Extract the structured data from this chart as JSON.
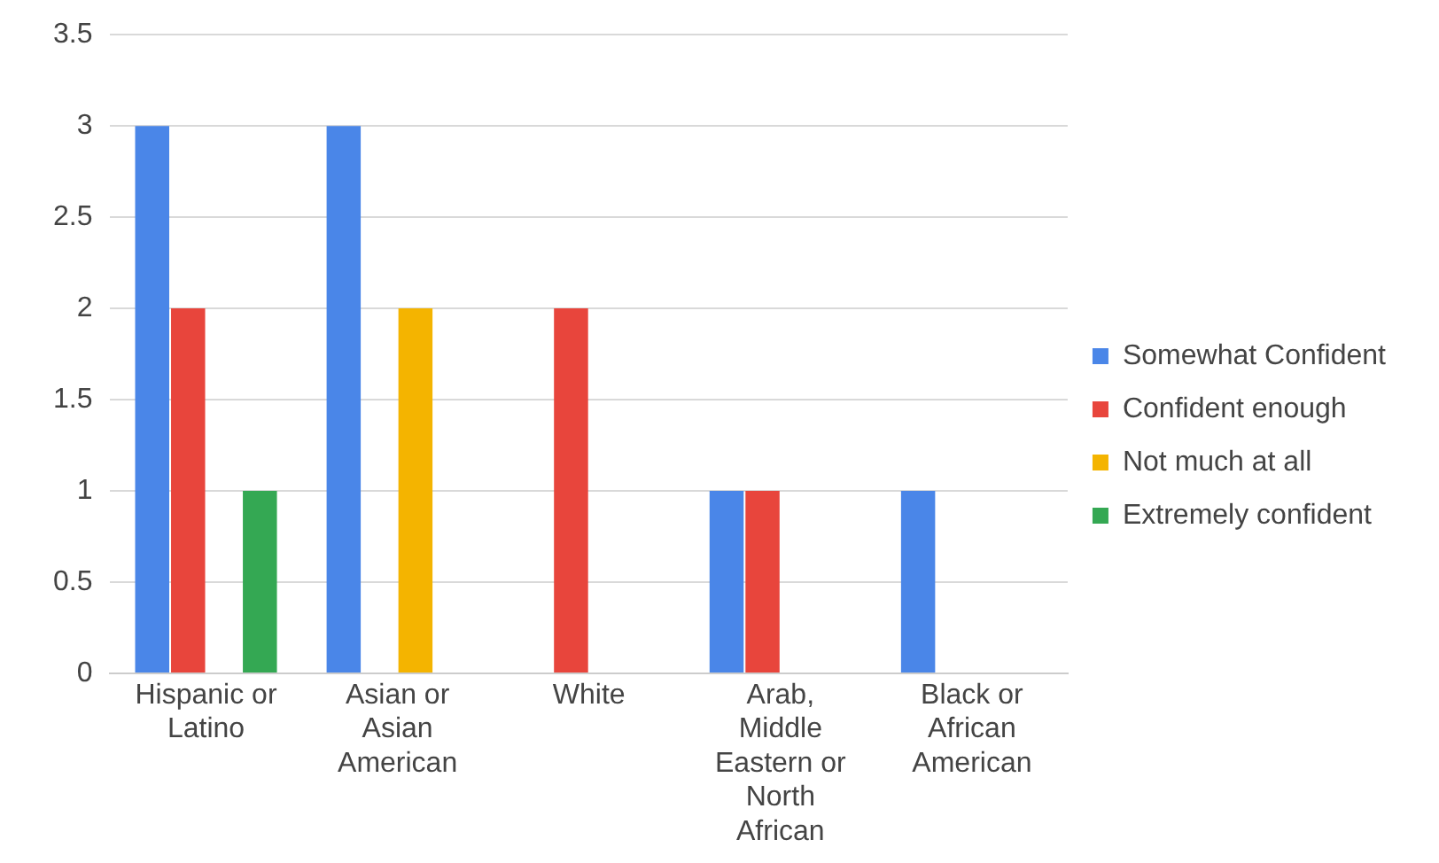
{
  "chart_data": {
    "type": "bar",
    "categories": [
      "Hispanic or Latino",
      "Asian or Asian American",
      "White",
      "Arab, Middle Eastern or North African",
      "Black or African American"
    ],
    "series": [
      {
        "name": "Somewhat Confident",
        "color": "#4a86e8",
        "values": [
          3,
          3,
          0,
          1,
          1
        ]
      },
      {
        "name": "Confident enough",
        "color": "#e8453c",
        "values": [
          2,
          0,
          2,
          1,
          0
        ]
      },
      {
        "name": "Not much at all",
        "color": "#f4b400",
        "values": [
          0,
          2,
          0,
          0,
          0
        ]
      },
      {
        "name": "Extremely confident",
        "color": "#34a853",
        "values": [
          1,
          0,
          0,
          0,
          0
        ]
      }
    ],
    "ylim": [
      0,
      3.5
    ],
    "yticks": [
      0,
      0.5,
      1,
      1.5,
      2,
      2.5,
      3,
      3.5
    ],
    "grid": "y",
    "legend": "right"
  }
}
